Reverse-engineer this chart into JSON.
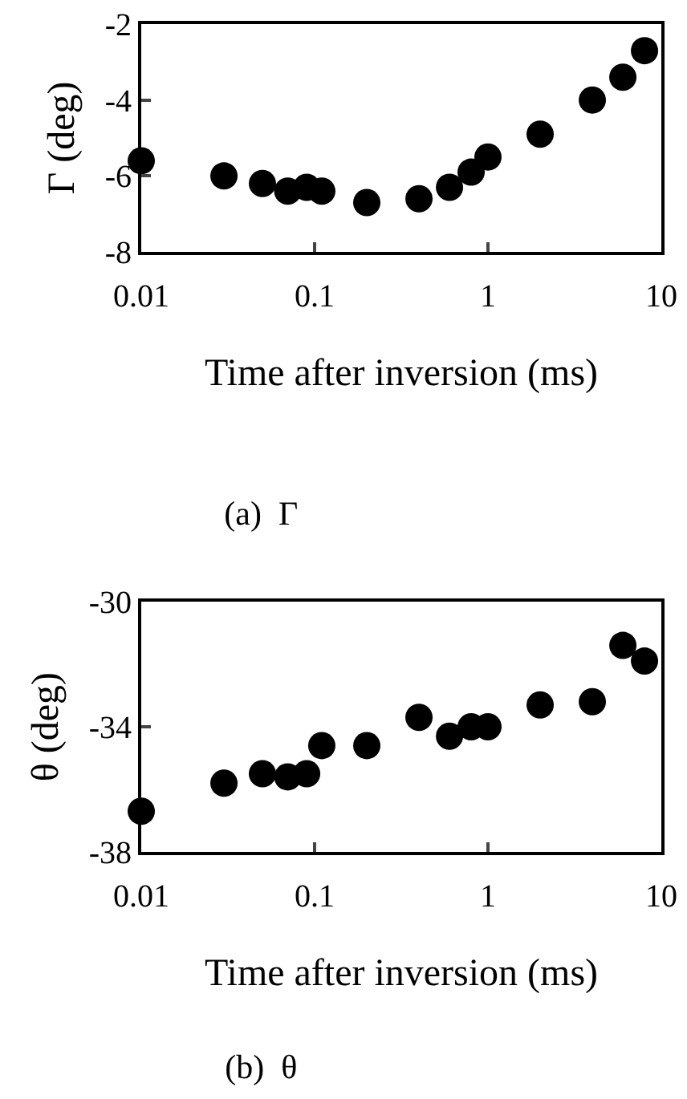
{
  "chart_data": [
    {
      "type": "scatter",
      "title": "(a)  Γ",
      "xlabel": "Time after inversion (ms)",
      "ylabel": "Γ (deg)",
      "log": "x",
      "marker": "circle",
      "grid": false,
      "xlim": [
        0.01,
        10
      ],
      "xticks": [
        0.01,
        0.1,
        1,
        10
      ],
      "ylim": [
        -8,
        -2
      ],
      "yticks": [
        -8,
        -6,
        -4,
        -2
      ],
      "x": [
        0.01,
        0.03,
        0.05,
        0.07,
        0.09,
        0.11,
        0.2,
        0.4,
        0.6,
        0.8,
        1,
        2,
        4,
        6,
        8
      ],
      "series": [
        {
          "color": "#000000",
          "values": [
            -5.6,
            -6.0,
            -6.2,
            -6.4,
            -6.3,
            -6.4,
            -6.7,
            -6.6,
            -6.3,
            -5.9,
            -5.5,
            -4.9,
            -4.0,
            -3.4,
            -2.7
          ]
        }
      ]
    },
    {
      "type": "scatter",
      "title": "(b)  θ",
      "xlabel": "Time after inversion (ms)",
      "ylabel": "θ (deg)",
      "log": "x",
      "marker": "circle",
      "grid": false,
      "xlim": [
        0.01,
        10
      ],
      "xticks": [
        0.01,
        0.1,
        1,
        10
      ],
      "ylim": [
        -38,
        -30
      ],
      "yticks": [
        -38,
        -34,
        -30
      ],
      "x": [
        0.01,
        0.03,
        0.05,
        0.07,
        0.09,
        0.11,
        0.2,
        0.4,
        0.6,
        0.8,
        1,
        2,
        4,
        6,
        8
      ],
      "series": [
        {
          "color": "#000000",
          "values": [
            -36.7,
            -35.8,
            -35.5,
            -35.6,
            -35.5,
            -34.6,
            -34.6,
            -33.7,
            -34.3,
            -34.0,
            -34.0,
            -33.3,
            -33.2,
            -31.4,
            -31.9
          ]
        }
      ]
    }
  ]
}
